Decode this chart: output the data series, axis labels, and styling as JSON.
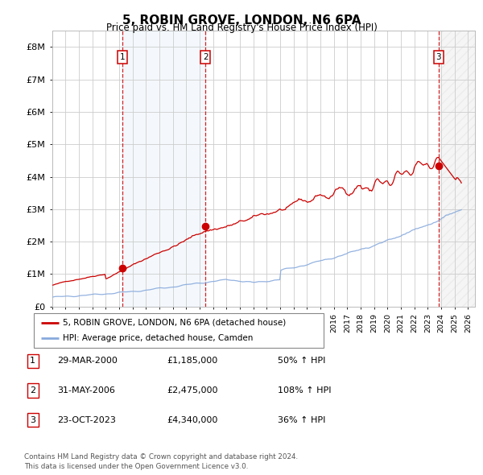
{
  "title": "5, ROBIN GROVE, LONDON, N6 6PA",
  "subtitle": "Price paid vs. HM Land Registry's House Price Index (HPI)",
  "sale_dates_num": [
    2000.23,
    2006.42,
    2023.81
  ],
  "sale_prices": [
    1185000,
    2475000,
    4340000
  ],
  "sale_labels": [
    "1",
    "2",
    "3"
  ],
  "sale_date_strs": [
    "29-MAR-2000",
    "31-MAY-2006",
    "23-OCT-2023"
  ],
  "sale_price_strs": [
    "£1,185,000",
    "£2,475,000",
    "£4,340,000"
  ],
  "sale_hpi_strs": [
    "50% ↑ HPI",
    "108% ↑ HPI",
    "36% ↑ HPI"
  ],
  "xmin": 1995.0,
  "xmax": 2026.5,
  "ymin": 0,
  "ymax": 8500000,
  "yticks": [
    0,
    1000000,
    2000000,
    3000000,
    4000000,
    5000000,
    6000000,
    7000000,
    8000000
  ],
  "ytick_labels": [
    "£0",
    "£1M",
    "£2M",
    "£3M",
    "£4M",
    "£5M",
    "£6M",
    "£7M",
    "£8M"
  ],
  "property_color": "#cc0000",
  "hpi_color": "#88aadd",
  "vline_color": "#cc0000",
  "shade_color": "#ddeeff",
  "grid_color": "#cccccc",
  "background_color": "#ffffff",
  "legend_label_property": "5, ROBIN GROVE, LONDON, N6 6PA (detached house)",
  "legend_label_hpi": "HPI: Average price, detached house, Camden",
  "footer_line1": "Contains HM Land Registry data © Crown copyright and database right 2024.",
  "footer_line2": "This data is licensed under the Open Government Licence v3.0."
}
